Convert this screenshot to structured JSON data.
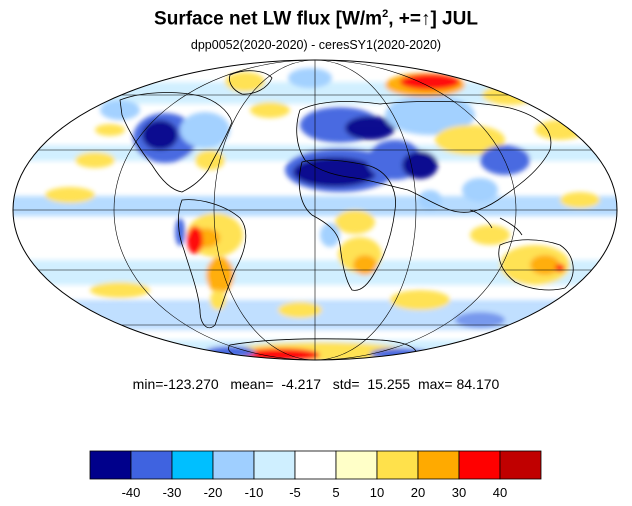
{
  "title": {
    "main": "Surface net LW flux [W/m",
    "exp": "2",
    "mid": ", +=",
    "arrow": "↑",
    "end": "]  JUL"
  },
  "subtitle": "dpp0052(2020-2020) - ceresSY1(2020-2020)",
  "stats": {
    "min_label": "min=",
    "min": "-123.270",
    "mean_label": "mean=",
    "mean": "-4.217",
    "std_label": "std=",
    "std": "15.255",
    "max_label": "max=",
    "max": "84.170"
  },
  "colorbar": {
    "colors": [
      "#00008b",
      "#3f63e0",
      "#00bfff",
      "#9fcfff",
      "#cfefff",
      "#ffffff",
      "#ffffc8",
      "#ffe14b",
      "#ffaa00",
      "#ff0000",
      "#c00000"
    ],
    "tick_labels": [
      "-40",
      "-30",
      "-20",
      "-10",
      "-5",
      "5",
      "10",
      "20",
      "30",
      "40"
    ]
  },
  "map": {
    "projection": "Mollweide",
    "ocean_base": "#ffffff",
    "coastline_color": "#000000",
    "gridline_color": "#000000"
  }
}
